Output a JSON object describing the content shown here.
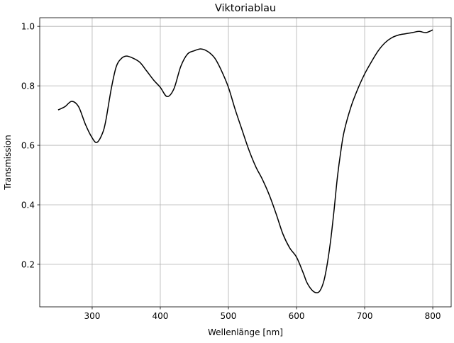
{
  "chart_data": {
    "type": "line",
    "title": "Viktoriablau",
    "xlabel": "Wellenlänge [nm]",
    "ylabel": "Transmission",
    "xlim": [
      223,
      827
    ],
    "ylim": [
      0.057,
      1.029
    ],
    "grid": true,
    "xticks": [
      300,
      400,
      500,
      600,
      700,
      800
    ],
    "yticks": [
      0.2,
      0.4,
      0.6,
      0.8,
      1.0
    ],
    "xtick_labels": [
      "300",
      "400",
      "500",
      "600",
      "700",
      "800"
    ],
    "ytick_labels": [
      "0.2",
      "0.4",
      "0.6",
      "0.8",
      "1.0"
    ],
    "series": [
      {
        "name": "Viktoriablau",
        "color": "#000000",
        "x": [
          250,
          260,
          270,
          280,
          290,
          300,
          307,
          315,
          320,
          328,
          335,
          342,
          350,
          360,
          370,
          380,
          390,
          400,
          410,
          420,
          430,
          440,
          450,
          460,
          470,
          480,
          490,
          500,
          510,
          520,
          530,
          540,
          550,
          560,
          570,
          580,
          590,
          600,
          610,
          615,
          622,
          628,
          634,
          640,
          645,
          650,
          655,
          660,
          665,
          670,
          680,
          690,
          700,
          710,
          720,
          730,
          740,
          750,
          760,
          770,
          780,
          790,
          800
        ],
        "y": [
          0.719,
          0.73,
          0.748,
          0.73,
          0.671,
          0.625,
          0.61,
          0.64,
          0.683,
          0.79,
          0.862,
          0.89,
          0.9,
          0.893,
          0.879,
          0.85,
          0.82,
          0.795,
          0.764,
          0.79,
          0.865,
          0.907,
          0.918,
          0.924,
          0.915,
          0.893,
          0.85,
          0.795,
          0.72,
          0.652,
          0.585,
          0.529,
          0.485,
          0.433,
          0.37,
          0.302,
          0.255,
          0.224,
          0.17,
          0.14,
          0.115,
          0.105,
          0.11,
          0.143,
          0.2,
          0.279,
          0.38,
          0.493,
          0.58,
          0.648,
          0.73,
          0.79,
          0.84,
          0.881,
          0.918,
          0.945,
          0.962,
          0.971,
          0.975,
          0.979,
          0.983,
          0.979,
          0.988
        ]
      }
    ]
  }
}
